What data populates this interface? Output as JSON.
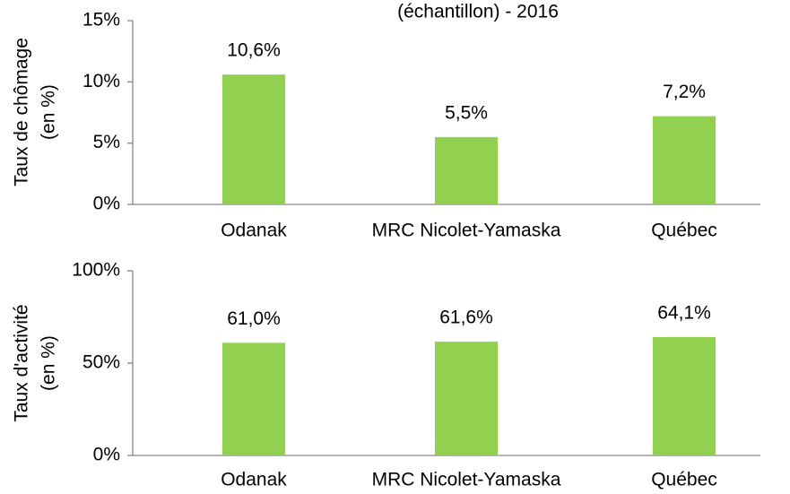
{
  "chart_data": [
    {
      "type": "bar",
      "title": "(échantillon) - 2016",
      "y_label": [
        "Taux de chômage",
        "(en %)"
      ],
      "categories": [
        "Odanak",
        "MRC Nicolet-Yamaska",
        "Québec"
      ],
      "values": [
        10.6,
        5.5,
        7.2
      ],
      "value_labels": [
        "10,6%",
        "5,5%",
        "7,2%"
      ],
      "color": "#92d050",
      "ylim": [
        0,
        15
      ],
      "yticks": [
        {
          "value": 0,
          "label": "0%"
        },
        {
          "value": 5,
          "label": "5%"
        },
        {
          "value": 10,
          "label": "10%"
        },
        {
          "value": 15,
          "label": "15%"
        }
      ]
    },
    {
      "type": "bar",
      "y_label": [
        "Taux d'activité",
        "(en %)"
      ],
      "categories": [
        "Odanak",
        "MRC Nicolet-Yamaska",
        "Québec"
      ],
      "values": [
        61.0,
        61.6,
        64.1
      ],
      "value_labels": [
        "61,0%",
        "61,6%",
        "64,1%"
      ],
      "color": "#92d050",
      "ylim": [
        0,
        100
      ],
      "yticks": [
        {
          "value": 0,
          "label": "0%"
        },
        {
          "value": 50,
          "label": "50%"
        },
        {
          "value": 100,
          "label": "100%"
        }
      ]
    }
  ]
}
